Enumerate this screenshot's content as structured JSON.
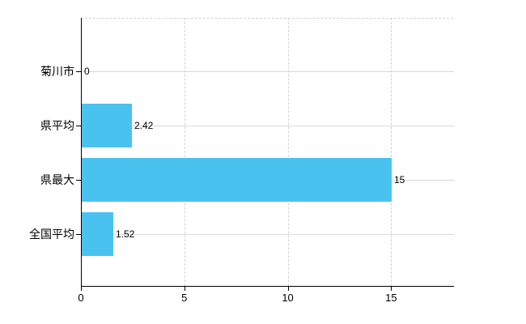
{
  "chart_data": {
    "type": "bar",
    "orientation": "horizontal",
    "title": "",
    "xlabel": "",
    "ylabel": "",
    "categories": [
      "菊川市",
      "県平均",
      "県最大",
      "全国平均"
    ],
    "values": [
      0,
      2.42,
      15,
      1.52
    ],
    "value_labels": [
      "0",
      "2.42",
      "15",
      "1.52"
    ],
    "xlim": [
      0,
      18
    ],
    "xticks": [
      0,
      5,
      10,
      15
    ],
    "xtick_labels": [
      "0",
      "5",
      "10",
      "15"
    ],
    "grid": {
      "vertical_gridlines_at": [
        5,
        10,
        15
      ],
      "horizontal_row_lines": true,
      "top_border_dashed": true
    },
    "legend": null,
    "colors": {
      "bar_fill": "#4ac2f0",
      "axis": "#000000",
      "vertical_gridline": "#d8d0d0",
      "row_gridline": "#d5dbd5",
      "text": "#000000",
      "background": "#ffffff"
    }
  }
}
